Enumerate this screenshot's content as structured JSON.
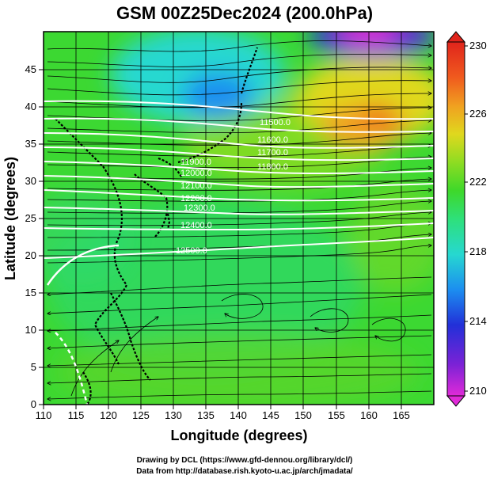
{
  "title": "GSM 00Z25Dec2024 (200.0hPa)",
  "x_axis": {
    "label": "Longitude (degrees)",
    "range": [
      110,
      170
    ],
    "ticks": [
      "110",
      "115",
      "120",
      "125",
      "130",
      "135",
      "140",
      "145",
      "150",
      "155",
      "160",
      "165"
    ]
  },
  "y_axis": {
    "label": "Latitude  (degrees)",
    "range": [
      0,
      50
    ],
    "ticks": [
      "0",
      "5",
      "10",
      "15",
      "20",
      "25",
      "30",
      "35",
      "40",
      "45"
    ]
  },
  "colorbar": {
    "range": [
      210,
      230
    ],
    "ticks": [
      "210",
      "214",
      "218",
      "222",
      "226",
      "230"
    ],
    "colors": [
      "#e02ad8",
      "#7a22d6",
      "#2230d8",
      "#1c8ef0",
      "#26d8d0",
      "#2ee07a",
      "#3ed82a",
      "#8edc22",
      "#e0d81e",
      "#f0a020",
      "#f05a1e",
      "#e0241c"
    ]
  },
  "contours": {
    "labels": [
      "11500.0",
      "11600.0",
      "11700.0",
      "11800.0",
      "11900.0",
      "12000.0",
      "12100.0",
      "12200.0",
      "12300.0",
      "12400.0",
      "12500.0"
    ]
  },
  "credits": {
    "line1": "Drawing by DCL (https://www.gfd-dennou.org/library/dcl/)",
    "line2": "Data from http://database.rish.kyoto-u.ac.jp/arch/jmadata/"
  }
}
